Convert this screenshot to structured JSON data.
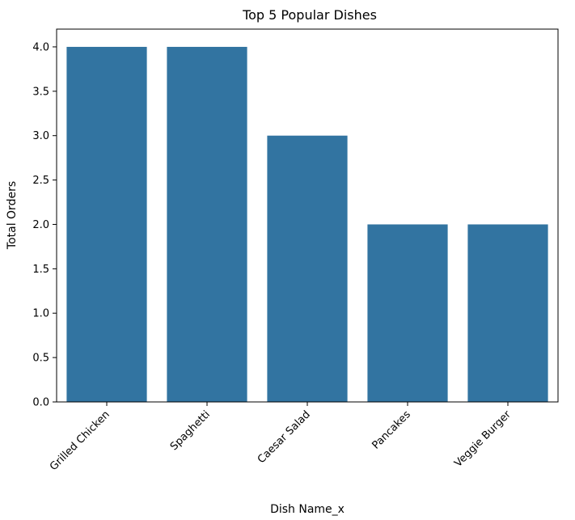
{
  "chart_data": {
    "type": "bar",
    "title": "Top 5 Popular Dishes",
    "xlabel": "Dish Name_x",
    "ylabel": "Total Orders",
    "categories": [
      "Grilled Chicken",
      "Spaghetti",
      "Caesar Salad",
      "Pancakes",
      "Veggie Burger"
    ],
    "values": [
      4.0,
      4.0,
      3.0,
      2.0,
      2.0
    ],
    "ylim": [
      0,
      4.2
    ],
    "yticks": [
      "0.0",
      "0.5",
      "1.0",
      "1.5",
      "2.0",
      "2.5",
      "3.0",
      "3.5",
      "4.0"
    ],
    "bar_color": "#3274a1",
    "grid": false,
    "legend": "none"
  }
}
